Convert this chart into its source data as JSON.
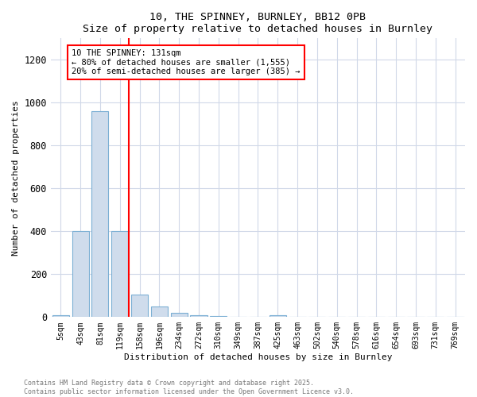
{
  "title1": "10, THE SPINNEY, BURNLEY, BB12 0PB",
  "title2": "Size of property relative to detached houses in Burnley",
  "xlabel": "Distribution of detached houses by size in Burnley",
  "ylabel": "Number of detached properties",
  "bin_labels": [
    "5sqm",
    "43sqm",
    "81sqm",
    "119sqm",
    "158sqm",
    "196sqm",
    "234sqm",
    "272sqm",
    "310sqm",
    "349sqm",
    "387sqm",
    "425sqm",
    "463sqm",
    "502sqm",
    "540sqm",
    "578sqm",
    "616sqm",
    "654sqm",
    "693sqm",
    "731sqm",
    "769sqm"
  ],
  "bar_values": [
    10,
    400,
    960,
    400,
    105,
    50,
    20,
    10,
    5,
    2,
    2,
    8,
    0,
    0,
    0,
    0,
    0,
    0,
    0,
    0,
    0
  ],
  "bar_color": "#cfdcec",
  "bar_edge_color": "#7bafd4",
  "red_line_x": 3.45,
  "annotation_line1": "10 THE SPINNEY: 131sqm",
  "annotation_line2": "← 80% of detached houses are smaller (1,555)",
  "annotation_line3": "20% of semi-detached houses are larger (385) →",
  "ylim": [
    0,
    1300
  ],
  "yticks": [
    0,
    200,
    400,
    600,
    800,
    1000,
    1200
  ],
  "footer_line1": "Contains HM Land Registry data © Crown copyright and database right 2025.",
  "footer_line2": "Contains public sector information licensed under the Open Government Licence v3.0.",
  "bg_color": "#ffffff",
  "plot_bg_color": "#ffffff",
  "grid_color": "#d0d8e8"
}
